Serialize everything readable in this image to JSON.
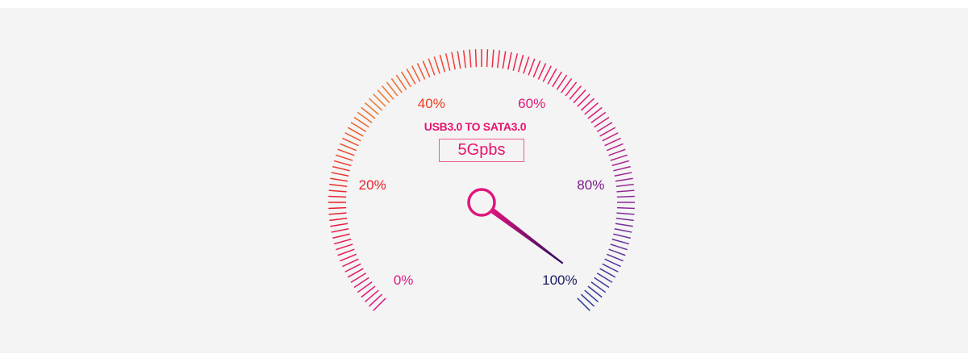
{
  "gauge": {
    "title": "USB3.0 TO SATA3.0",
    "value_text": "5Gpbs",
    "needle_value_percent": 97,
    "scale_labels": [
      {
        "text": "0%",
        "color": "#d81b86"
      },
      {
        "text": "20%",
        "color": "#e8202c"
      },
      {
        "text": "40%",
        "color": "#ef3d1c"
      },
      {
        "text": "60%",
        "color": "#e3157a"
      },
      {
        "text": "80%",
        "color": "#7a1a88"
      },
      {
        "text": "100%",
        "color": "#1c1a66"
      }
    ],
    "colors": {
      "background": "#f4f4f4",
      "accent": "#e5156f",
      "tick_gradient": [
        "#e0158a",
        "#e8202c",
        "#f07a2a",
        "#ef2a3a",
        "#e8157a",
        "#8a2a9a",
        "#2a3a9a"
      ],
      "needle_start": "#e0157e",
      "needle_end": "#2a0a5a"
    }
  }
}
